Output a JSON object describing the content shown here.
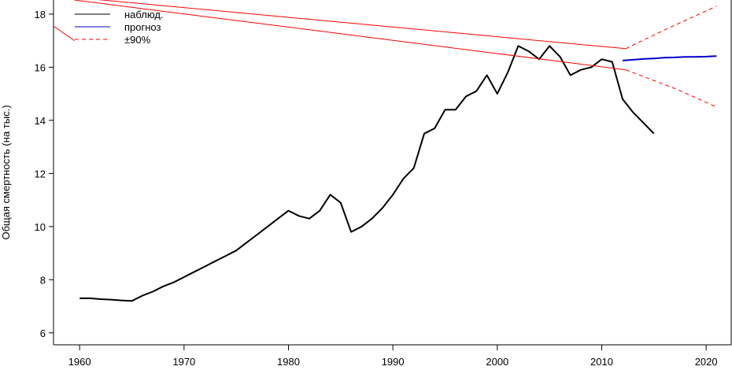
{
  "chart_data": {
    "type": "line",
    "y_label": "Общая смертность (на тыс.)",
    "xlim": [
      1957.5,
      2022.4
    ],
    "xticks": [
      1960,
      1970,
      1980,
      1990,
      2000,
      2010,
      2020
    ],
    "ylim": [
      5.55,
      18.53
    ],
    "yticks": [
      6,
      8,
      10,
      12,
      14,
      16,
      18
    ],
    "legend": "top-left",
    "series": [
      {
        "name": "наблюд.",
        "color": "#000000",
        "dash": false,
        "width": 2,
        "x": [
          1960,
          1961,
          1962,
          1963,
          1964,
          1965,
          1966,
          1967,
          1968,
          1969,
          1970,
          1971,
          1972,
          1973,
          1974,
          1975,
          1976,
          1977,
          1978,
          1979,
          1980,
          1981,
          1982,
          1983,
          1984,
          1985,
          1986,
          1987,
          1988,
          1989,
          1990,
          1991,
          1992,
          1993,
          1994,
          1995,
          1996,
          1997,
          1998,
          1999,
          2000,
          2001,
          2002,
          2003,
          2004,
          2005,
          2006,
          2007,
          2008,
          2009,
          2010,
          2011,
          2012,
          2013,
          2014,
          2015
        ],
        "values": [
          7.3,
          7.3,
          7.27,
          7.25,
          7.22,
          7.2,
          7.4,
          7.55,
          7.75,
          7.9,
          8.1,
          8.3,
          8.5,
          8.7,
          8.9,
          9.1,
          9.4,
          9.7,
          10.0,
          10.3,
          10.6,
          10.4,
          10.3,
          10.6,
          11.2,
          10.9,
          9.8,
          10.0,
          10.3,
          10.7,
          11.2,
          11.8,
          12.2,
          13.5,
          13.7,
          14.4,
          14.4,
          14.9,
          15.1,
          15.7,
          15.0,
          15.8,
          16.8,
          16.6,
          16.3,
          16.8,
          16.4,
          15.7,
          15.9,
          16.0,
          16.3,
          16.2,
          14.8,
          14.3,
          13.9,
          13.5
        ]
      },
      {
        "name": "прогноз",
        "color": "#0000cc",
        "dash": false,
        "width": 2,
        "x": [
          2012,
          2013,
          2014,
          2015,
          2016,
          2017,
          2018,
          2019,
          2020,
          2021
        ],
        "values": [
          16.25,
          16.28,
          16.31,
          16.33,
          16.36,
          16.37,
          16.39,
          16.39,
          16.4,
          16.42
        ]
      },
      {
        "name": "±90%",
        "color": "#ff0000",
        "dash": true,
        "width": 1,
        "x": [
          2012.3,
          2016,
          2021
        ],
        "values": [
          16.7,
          17.4,
          18.3
        ]
      },
      {
        "color": "#ff0000",
        "dash": true,
        "width": 1,
        "x": [
          2012.3,
          2017,
          2021
        ],
        "values": [
          15.9,
          15.2,
          14.5
        ]
      },
      {
        "color": "#ff0000",
        "dash": false,
        "width": 1,
        "x": [
          1958,
          2012.3
        ],
        "values": [
          18.68,
          16.7
        ]
      },
      {
        "color": "#ff0000",
        "dash": false,
        "width": 1,
        "x": [
          1959.5,
          2012.3
        ],
        "values": [
          18.53,
          15.9
        ]
      },
      {
        "color": "#ff0000",
        "dash": false,
        "width": 1,
        "x": [
          1957.5,
          1959.5
        ],
        "values": [
          17.55,
          17.0
        ]
      }
    ]
  }
}
